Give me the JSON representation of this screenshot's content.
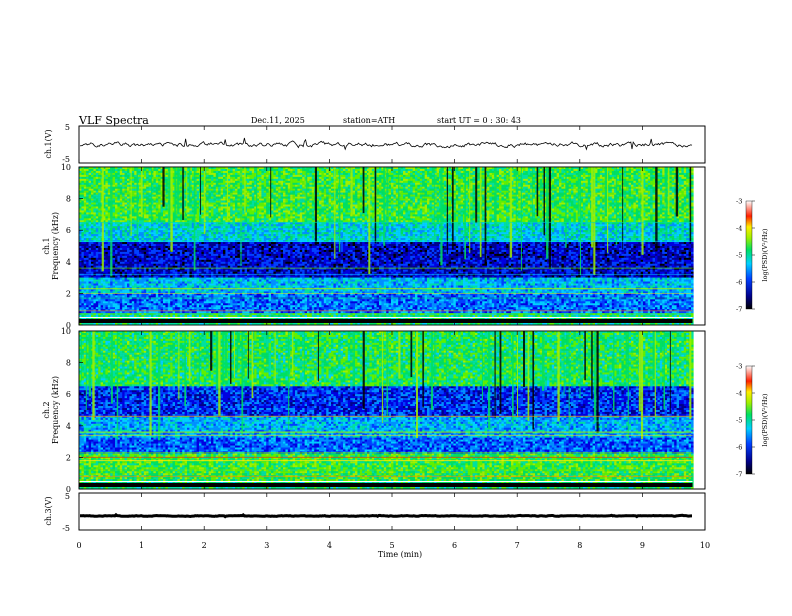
{
  "header": {
    "title": "VLF  Spectra",
    "date": "Dec.11, 2025",
    "station": "station=ATH",
    "start_ut": "start  UT  =    0  : 30: 43"
  },
  "chart_data": [
    {
      "type": "line",
      "panel": "ch1-waveform",
      "ylabel": "ch.1(V)",
      "ylim": [
        -5,
        5
      ],
      "yticks": [
        "5",
        "-5"
      ],
      "xlim": [
        0,
        10
      ],
      "trace_level": 0,
      "trace_color": "#000000"
    },
    {
      "type": "heatmap",
      "panel": "ch1-spectrogram",
      "ylabel": "ch.1\nFrequency (kHz)",
      "ylim": [
        0,
        10
      ],
      "yticks": [
        "0",
        "2",
        "4",
        "6",
        "8",
        "10"
      ],
      "xlim": [
        0,
        10
      ],
      "colorbar": {
        "label": "log(PSD)(V²/Hz)",
        "range": [
          -7,
          -3
        ],
        "ticks": [
          "-3",
          "-4",
          "-5",
          "-6",
          "-7"
        ]
      }
    },
    {
      "type": "heatmap",
      "panel": "ch2-spectrogram",
      "ylabel": "ch.2\nFrequency (kHz)",
      "ylim": [
        0,
        10
      ],
      "yticks": [
        "0",
        "2",
        "4",
        "6",
        "8",
        "10"
      ],
      "xlim": [
        0,
        10
      ],
      "colorbar": {
        "label": "log(PSD)(V²/Hz)",
        "range": [
          -7,
          -3
        ],
        "ticks": [
          "-3",
          "-4",
          "-5",
          "-6",
          "-7"
        ]
      }
    },
    {
      "type": "line",
      "panel": "ch3-waveform",
      "ylabel": "ch.3(V)",
      "ylim": [
        -5,
        5
      ],
      "yticks": [
        "5",
        "-5"
      ],
      "xlim": [
        0,
        10
      ],
      "trace_level": -1.2,
      "trace_color": "#000000"
    }
  ],
  "xaxis": {
    "label": "Time  (min)",
    "ticks": [
      "0",
      "1",
      "2",
      "3",
      "4",
      "5",
      "6",
      "7",
      "8",
      "9",
      "10"
    ],
    "data_end_min": 9.8
  }
}
